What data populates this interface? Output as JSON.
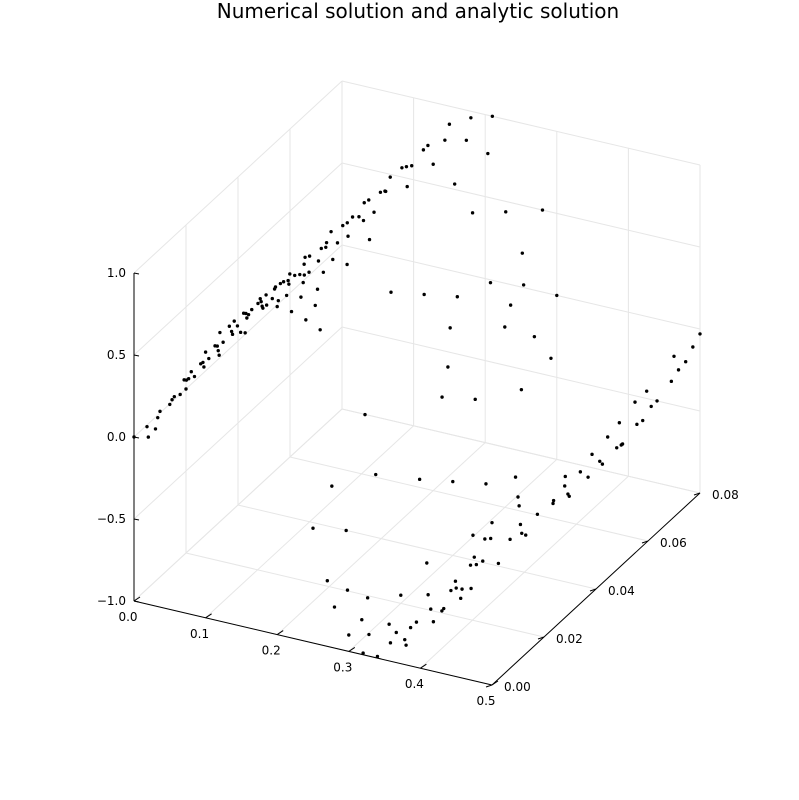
{
  "chart_data": {
    "type": "scatter3d",
    "title": "Numerical solution and analytic solution",
    "xlabel": "",
    "ylabel": "",
    "zlabel": "",
    "xlim": [
      0,
      0.5
    ],
    "ylim": [
      0,
      0.08
    ],
    "zlim": [
      -1.0,
      1.0
    ],
    "x_ticks": [
      "0.0",
      "0.1",
      "0.2",
      "0.3",
      "0.4",
      "0.5"
    ],
    "x_tick_values": [
      0,
      0.1,
      0.2,
      0.3,
      0.4,
      0.5
    ],
    "y_ticks": [
      "0.00",
      "0.02",
      "0.04",
      "0.06",
      "0.08"
    ],
    "y_tick_values": [
      0,
      0.02,
      0.04,
      0.06,
      0.08
    ],
    "z_ticks": [
      "−1.0",
      "−0.5",
      "0.0",
      "0.5",
      "1.0"
    ],
    "z_tick_values": [
      -1.0,
      -0.5,
      0.0,
      0.5,
      1.0
    ],
    "grid": true,
    "legend": "none",
    "marker_color": "#000000",
    "series": [
      {
        "points": [
          [
            0.0,
            0.0,
            0.0
          ],
          [
            0.02,
            0.0,
            0.02
          ],
          [
            0.03,
            0.0,
            0.08
          ],
          [
            0.05,
            0.0,
            0.25
          ],
          [
            0.07,
            0.0,
            0.42
          ],
          [
            0.08,
            0.0,
            0.48
          ],
          [
            0.1,
            0.0,
            0.62
          ],
          [
            0.12,
            0.0,
            0.76
          ],
          [
            0.14,
            0.0,
            0.85
          ],
          [
            0.16,
            0.0,
            0.91
          ],
          [
            0.18,
            0.0,
            0.97
          ],
          [
            0.2,
            0.0,
            1.0
          ],
          [
            0.22,
            0.0,
            0.99
          ],
          [
            0.24,
            0.0,
            0.96
          ],
          [
            0.26,
            0.0,
            0.92
          ],
          [
            0.0,
            0.005,
            -0.01
          ],
          [
            0.015,
            0.005,
            0.06
          ],
          [
            0.035,
            0.005,
            0.19
          ],
          [
            0.055,
            0.005,
            0.33
          ],
          [
            0.075,
            0.005,
            0.45
          ],
          [
            0.095,
            0.005,
            0.58
          ],
          [
            0.115,
            0.005,
            0.72
          ],
          [
            0.135,
            0.005,
            0.82
          ],
          [
            0.155,
            0.005,
            0.9
          ],
          [
            0.175,
            0.005,
            0.95
          ],
          [
            0.195,
            0.005,
            0.99
          ],
          [
            0.215,
            0.005,
            1.0
          ],
          [
            0.235,
            0.005,
            0.97
          ],
          [
            0.0,
            0.01,
            0.01
          ],
          [
            0.02,
            0.01,
            0.12
          ],
          [
            0.04,
            0.01,
            0.25
          ],
          [
            0.06,
            0.01,
            0.37
          ],
          [
            0.08,
            0.01,
            0.49
          ],
          [
            0.1,
            0.01,
            0.6
          ],
          [
            0.12,
            0.01,
            0.73
          ],
          [
            0.14,
            0.01,
            0.84
          ],
          [
            0.16,
            0.01,
            0.92
          ],
          [
            0.18,
            0.01,
            0.97
          ],
          [
            0.2,
            0.01,
            1.0
          ],
          [
            0.22,
            0.01,
            0.98
          ],
          [
            0.01,
            0.015,
            0.05
          ],
          [
            0.03,
            0.015,
            0.18
          ],
          [
            0.05,
            0.015,
            0.31
          ],
          [
            0.07,
            0.015,
            0.43
          ],
          [
            0.09,
            0.015,
            0.55
          ],
          [
            0.11,
            0.015,
            0.67
          ],
          [
            0.13,
            0.015,
            0.78
          ],
          [
            0.15,
            0.015,
            0.87
          ],
          [
            0.17,
            0.015,
            0.94
          ],
          [
            0.19,
            0.015,
            0.98
          ],
          [
            0.21,
            0.015,
            1.0
          ],
          [
            0.0,
            0.02,
            0.0
          ],
          [
            0.025,
            0.02,
            0.16
          ],
          [
            0.045,
            0.02,
            0.28
          ],
          [
            0.065,
            0.02,
            0.4
          ],
          [
            0.085,
            0.02,
            0.52
          ],
          [
            0.105,
            0.02,
            0.64
          ],
          [
            0.125,
            0.02,
            0.75
          ],
          [
            0.145,
            0.02,
            0.85
          ],
          [
            0.165,
            0.02,
            0.93
          ],
          [
            0.185,
            0.02,
            0.97
          ],
          [
            0.205,
            0.02,
            1.0
          ],
          [
            0.225,
            0.02,
            0.99
          ],
          [
            0.01,
            0.03,
            0.07
          ],
          [
            0.04,
            0.03,
            0.24
          ],
          [
            0.07,
            0.03,
            0.43
          ],
          [
            0.1,
            0.03,
            0.61
          ],
          [
            0.13,
            0.03,
            0.79
          ],
          [
            0.16,
            0.03,
            0.91
          ],
          [
            0.19,
            0.03,
            0.98
          ],
          [
            0.22,
            0.03,
            0.99
          ],
          [
            0.01,
            0.04,
            0.06
          ],
          [
            0.04,
            0.04,
            0.26
          ],
          [
            0.07,
            0.04,
            0.44
          ],
          [
            0.1,
            0.04,
            0.62
          ],
          [
            0.13,
            0.04,
            0.8
          ],
          [
            0.16,
            0.04,
            0.92
          ],
          [
            0.19,
            0.04,
            0.98
          ],
          [
            0.02,
            0.05,
            0.12
          ],
          [
            0.05,
            0.05,
            0.31
          ],
          [
            0.08,
            0.05,
            0.5
          ],
          [
            0.11,
            0.05,
            0.67
          ],
          [
            0.14,
            0.05,
            0.84
          ],
          [
            0.17,
            0.05,
            0.94
          ],
          [
            0.2,
            0.05,
            1.0
          ],
          [
            0.02,
            0.06,
            0.13
          ],
          [
            0.05,
            0.06,
            0.33
          ],
          [
            0.08,
            0.06,
            0.51
          ],
          [
            0.11,
            0.06,
            0.68
          ],
          [
            0.14,
            0.06,
            0.85
          ],
          [
            0.17,
            0.06,
            0.95
          ],
          [
            0.2,
            0.06,
            0.99
          ],
          [
            0.03,
            0.07,
            0.19
          ],
          [
            0.06,
            0.07,
            0.38
          ],
          [
            0.09,
            0.07,
            0.56
          ],
          [
            0.12,
            0.07,
            0.74
          ],
          [
            0.15,
            0.07,
            0.88
          ],
          [
            0.18,
            0.07,
            0.97
          ],
          [
            0.21,
            0.07,
            1.0
          ],
          [
            0.03,
            0.08,
            0.18
          ],
          [
            0.06,
            0.08,
            0.39
          ],
          [
            0.09,
            0.08,
            0.57
          ],
          [
            0.12,
            0.08,
            0.73
          ],
          [
            0.15,
            0.08,
            0.89
          ],
          [
            0.18,
            0.08,
            0.96
          ],
          [
            0.21,
            0.08,
            1.0
          ],
          [
            0.25,
            0.03,
            0.7
          ],
          [
            0.26,
            0.04,
            0.55
          ],
          [
            0.255,
            0.06,
            0.75
          ],
          [
            0.265,
            0.07,
            0.62
          ],
          [
            0.27,
            0.05,
            0.4
          ],
          [
            0.25,
            0.02,
            0.1
          ],
          [
            0.28,
            0.06,
            0.35
          ],
          [
            0.29,
            0.07,
            0.2
          ],
          [
            0.24,
            0.01,
            -0.2
          ],
          [
            0.265,
            0.02,
            -0.25
          ],
          [
            0.285,
            0.04,
            -0.05
          ],
          [
            0.3,
            0.06,
            0.1
          ],
          [
            0.305,
            0.07,
            -0.1
          ],
          [
            0.26,
            0.05,
            0.2
          ],
          [
            0.28,
            0.08,
            0.5
          ],
          [
            0.27,
            0.075,
            0.3
          ],
          [
            0.3,
            0.08,
            0.0
          ],
          [
            0.31,
            0.075,
            -0.3
          ],
          [
            0.23,
            0.06,
            0.9
          ],
          [
            0.24,
            0.07,
            0.95
          ],
          [
            0.25,
            0.0,
            -0.3
          ],
          [
            0.26,
            0.01,
            -0.45
          ],
          [
            0.27,
            0.0,
            -0.6
          ],
          [
            0.28,
            0.005,
            -0.72
          ],
          [
            0.29,
            0.01,
            -0.83
          ],
          [
            0.3,
            0.0,
            -0.9
          ],
          [
            0.31,
            0.005,
            -0.96
          ],
          [
            0.32,
            0.0,
            -0.99
          ],
          [
            0.33,
            0.01,
            -1.0
          ],
          [
            0.34,
            0.005,
            -0.98
          ],
          [
            0.35,
            0.01,
            -0.95
          ],
          [
            0.36,
            0.015,
            -0.9
          ],
          [
            0.37,
            0.02,
            -0.85
          ],
          [
            0.3,
            0.02,
            -0.95
          ],
          [
            0.32,
            0.025,
            -1.0
          ],
          [
            0.34,
            0.03,
            -0.97
          ],
          [
            0.36,
            0.035,
            -0.9
          ],
          [
            0.38,
            0.04,
            -0.82
          ],
          [
            0.4,
            0.045,
            -0.72
          ],
          [
            0.42,
            0.05,
            -0.6
          ],
          [
            0.44,
            0.055,
            -0.46
          ],
          [
            0.46,
            0.06,
            -0.32
          ],
          [
            0.48,
            0.065,
            -0.18
          ],
          [
            0.5,
            0.07,
            -0.02
          ],
          [
            0.28,
            0.0,
            -0.75
          ],
          [
            0.3,
            0.005,
            -0.88
          ],
          [
            0.32,
            0.01,
            -0.96
          ],
          [
            0.34,
            0.015,
            -1.0
          ],
          [
            0.36,
            0.02,
            -0.97
          ],
          [
            0.38,
            0.025,
            -0.9
          ],
          [
            0.4,
            0.03,
            -0.8
          ],
          [
            0.42,
            0.035,
            -0.68
          ],
          [
            0.44,
            0.04,
            -0.54
          ],
          [
            0.46,
            0.045,
            -0.4
          ],
          [
            0.48,
            0.05,
            -0.24
          ],
          [
            0.5,
            0.055,
            -0.08
          ],
          [
            0.3,
            0.03,
            -0.9
          ],
          [
            0.33,
            0.04,
            -0.98
          ],
          [
            0.36,
            0.05,
            -0.95
          ],
          [
            0.39,
            0.06,
            -0.84
          ],
          [
            0.42,
            0.07,
            -0.66
          ],
          [
            0.45,
            0.075,
            -0.45
          ],
          [
            0.48,
            0.08,
            -0.22
          ],
          [
            0.5,
            0.08,
            -0.03
          ],
          [
            0.31,
            0.045,
            -0.94
          ],
          [
            0.34,
            0.055,
            -0.99
          ],
          [
            0.37,
            0.065,
            -0.92
          ],
          [
            0.4,
            0.07,
            -0.78
          ],
          [
            0.43,
            0.075,
            -0.58
          ],
          [
            0.46,
            0.08,
            -0.36
          ],
          [
            0.49,
            0.08,
            -0.12
          ],
          [
            0.32,
            0.06,
            -0.97
          ],
          [
            0.35,
            0.065,
            -0.98
          ],
          [
            0.38,
            0.07,
            -0.88
          ],
          [
            0.41,
            0.075,
            -0.72
          ],
          [
            0.44,
            0.08,
            -0.5
          ],
          [
            0.47,
            0.08,
            -0.28
          ],
          [
            0.33,
            0.075,
            -1.0
          ],
          [
            0.36,
            0.08,
            -0.95
          ],
          [
            0.39,
            0.08,
            -0.82
          ],
          [
            0.42,
            0.08,
            -0.64
          ],
          [
            0.43,
            0.0,
            -0.62
          ],
          [
            0.45,
            0.0,
            -0.46
          ],
          [
            0.47,
            0.0,
            -0.3
          ],
          [
            0.49,
            0.0,
            -0.12
          ],
          [
            0.5,
            0.0,
            -0.01
          ],
          [
            0.44,
            0.005,
            -0.55
          ],
          [
            0.46,
            0.005,
            -0.38
          ],
          [
            0.48,
            0.005,
            -0.2
          ],
          [
            0.5,
            0.01,
            0.0
          ],
          [
            0.42,
            0.01,
            -0.7
          ],
          [
            0.4,
            0.005,
            -0.79
          ],
          [
            0.38,
            0.0,
            -0.88
          ],
          [
            0.36,
            0.005,
            -0.94
          ],
          [
            0.34,
            0.0,
            -0.99
          ],
          [
            0.29,
            0.03,
            -0.4
          ],
          [
            0.3,
            0.04,
            -0.55
          ],
          [
            0.31,
            0.05,
            -0.7
          ],
          [
            0.315,
            0.06,
            -0.8
          ],
          [
            0.295,
            0.05,
            -0.2
          ],
          [
            0.305,
            0.065,
            -0.35
          ],
          [
            0.29,
            0.065,
            0.15
          ],
          [
            0.275,
            0.045,
            0.05
          ]
        ]
      }
    ]
  }
}
